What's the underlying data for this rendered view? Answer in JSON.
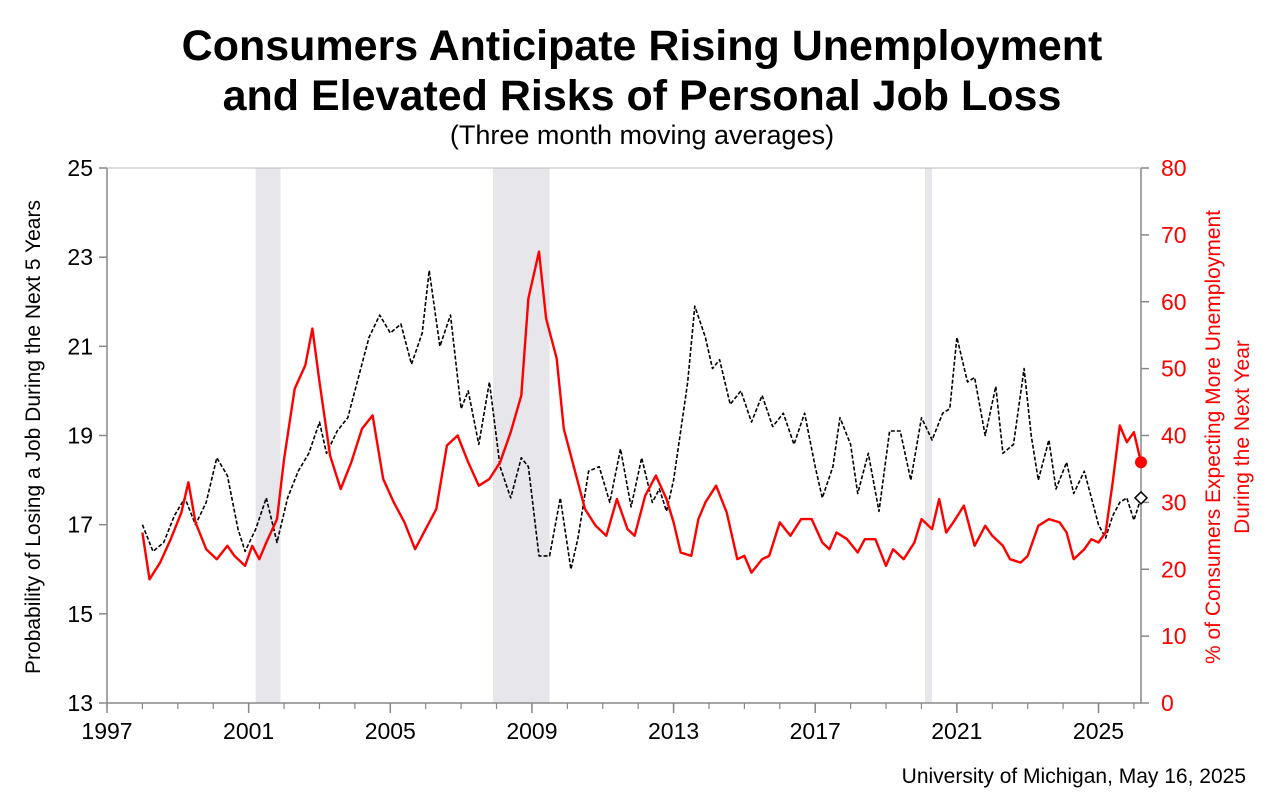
{
  "title_line1": "Consumers Anticipate Rising Unemployment",
  "title_line2": "and Elevated Risks of Personal Job Loss",
  "subtitle": "(Three month moving averages)",
  "source": "University of Michigan, May 16, 2025",
  "colors": {
    "left_series": "#000000",
    "right_series": "#ff0000",
    "right_axis": "#ff0000",
    "recession": "#e6e6eb"
  },
  "chart_data": {
    "type": "line",
    "xlim": [
      1997,
      2026.2
    ],
    "x_ticks": [
      "1997",
      "2001",
      "2005",
      "2009",
      "2013",
      "2017",
      "2021",
      "2025"
    ],
    "y_left": {
      "label": "Probability of Losing a Job During the Next 5 Years",
      "ylim": [
        13,
        25
      ],
      "ticks": [
        "13",
        "15",
        "17",
        "19",
        "21",
        "23",
        "25"
      ]
    },
    "y_right": {
      "label_line1": "% of Consumers Expecting More Unemployment",
      "label_line2": "During the Next Year",
      "ylim": [
        0,
        80
      ],
      "ticks": [
        "0",
        "10",
        "20",
        "30",
        "40",
        "50",
        "60",
        "70",
        "80"
      ]
    },
    "recessions": [
      [
        2001.2,
        2001.9
      ],
      [
        2007.9,
        2009.5
      ],
      [
        2020.1,
        2020.3
      ]
    ],
    "grid": false,
    "legend": "none",
    "series": [
      {
        "axis": "left",
        "style": "dashed",
        "points": [
          [
            1998.0,
            17.0
          ],
          [
            1998.3,
            16.4
          ],
          [
            1998.6,
            16.6
          ],
          [
            1998.9,
            17.2
          ],
          [
            1999.2,
            17.6
          ],
          [
            1999.5,
            17.0
          ],
          [
            1999.8,
            17.5
          ],
          [
            2000.1,
            18.5
          ],
          [
            2000.4,
            18.1
          ],
          [
            2000.7,
            16.9
          ],
          [
            2000.9,
            16.4
          ],
          [
            2001.2,
            16.9
          ],
          [
            2001.5,
            17.6
          ],
          [
            2001.8,
            16.6
          ],
          [
            2002.1,
            17.6
          ],
          [
            2002.4,
            18.2
          ],
          [
            2002.7,
            18.6
          ],
          [
            2003.0,
            19.3
          ],
          [
            2003.2,
            18.6
          ],
          [
            2003.5,
            19.1
          ],
          [
            2003.8,
            19.4
          ],
          [
            2004.1,
            20.3
          ],
          [
            2004.4,
            21.2
          ],
          [
            2004.7,
            21.7
          ],
          [
            2005.0,
            21.3
          ],
          [
            2005.3,
            21.5
          ],
          [
            2005.6,
            20.6
          ],
          [
            2005.9,
            21.3
          ],
          [
            2006.1,
            22.7
          ],
          [
            2006.4,
            21.0
          ],
          [
            2006.7,
            21.7
          ],
          [
            2007.0,
            19.6
          ],
          [
            2007.2,
            20.0
          ],
          [
            2007.5,
            18.8
          ],
          [
            2007.8,
            20.2
          ],
          [
            2008.1,
            18.3
          ],
          [
            2008.4,
            17.6
          ],
          [
            2008.7,
            18.5
          ],
          [
            2008.9,
            18.3
          ],
          [
            2009.2,
            16.3
          ],
          [
            2009.5,
            16.3
          ],
          [
            2009.8,
            17.6
          ],
          [
            2010.1,
            16.0
          ],
          [
            2010.3,
            16.7
          ],
          [
            2010.6,
            18.2
          ],
          [
            2010.9,
            18.3
          ],
          [
            2011.2,
            17.5
          ],
          [
            2011.5,
            18.7
          ],
          [
            2011.8,
            17.4
          ],
          [
            2012.1,
            18.5
          ],
          [
            2012.4,
            17.5
          ],
          [
            2012.6,
            17.8
          ],
          [
            2012.8,
            17.3
          ],
          [
            2013.0,
            18.0
          ],
          [
            2013.2,
            19.1
          ],
          [
            2013.4,
            20.2
          ],
          [
            2013.6,
            21.9
          ],
          [
            2013.9,
            21.2
          ],
          [
            2014.1,
            20.5
          ],
          [
            2014.3,
            20.7
          ],
          [
            2014.6,
            19.7
          ],
          [
            2014.9,
            20.0
          ],
          [
            2015.2,
            19.3
          ],
          [
            2015.5,
            19.9
          ],
          [
            2015.8,
            19.2
          ],
          [
            2016.1,
            19.5
          ],
          [
            2016.4,
            18.8
          ],
          [
            2016.7,
            19.5
          ],
          [
            2017.0,
            18.3
          ],
          [
            2017.2,
            17.6
          ],
          [
            2017.5,
            18.3
          ],
          [
            2017.7,
            19.4
          ],
          [
            2018.0,
            18.8
          ],
          [
            2018.2,
            17.7
          ],
          [
            2018.5,
            18.6
          ],
          [
            2018.8,
            17.3
          ],
          [
            2019.1,
            19.1
          ],
          [
            2019.4,
            19.1
          ],
          [
            2019.7,
            18.0
          ],
          [
            2020.0,
            19.4
          ],
          [
            2020.3,
            18.9
          ],
          [
            2020.6,
            19.5
          ],
          [
            2020.8,
            19.6
          ],
          [
            2021.0,
            21.2
          ],
          [
            2021.3,
            20.2
          ],
          [
            2021.5,
            20.3
          ],
          [
            2021.8,
            19.0
          ],
          [
            2022.1,
            20.1
          ],
          [
            2022.3,
            18.6
          ],
          [
            2022.6,
            18.8
          ],
          [
            2022.9,
            20.5
          ],
          [
            2023.1,
            19.0
          ],
          [
            2023.3,
            18.0
          ],
          [
            2023.6,
            18.9
          ],
          [
            2023.8,
            17.8
          ],
          [
            2024.1,
            18.4
          ],
          [
            2024.3,
            17.7
          ],
          [
            2024.6,
            18.2
          ],
          [
            2024.8,
            17.6
          ],
          [
            2025.0,
            17.0
          ],
          [
            2025.2,
            16.7
          ],
          [
            2025.4,
            17.2
          ],
          [
            2025.6,
            17.5
          ],
          [
            2025.8,
            17.6
          ],
          [
            2026.0,
            17.1
          ],
          [
            2026.2,
            17.6
          ]
        ]
      },
      {
        "axis": "right",
        "style": "solid",
        "points": [
          [
            1998.0,
            25.5
          ],
          [
            1998.2,
            18.5
          ],
          [
            1998.5,
            21.0
          ],
          [
            1998.8,
            24.5
          ],
          [
            1999.1,
            28.5
          ],
          [
            1999.3,
            33.0
          ],
          [
            1999.5,
            27.0
          ],
          [
            1999.8,
            23.0
          ],
          [
            2000.1,
            21.5
          ],
          [
            2000.4,
            23.5
          ],
          [
            2000.6,
            22.0
          ],
          [
            2000.9,
            20.5
          ],
          [
            2001.1,
            23.5
          ],
          [
            2001.3,
            21.5
          ],
          [
            2001.5,
            24.0
          ],
          [
            2001.8,
            27.5
          ],
          [
            2002.0,
            36.5
          ],
          [
            2002.3,
            47.0
          ],
          [
            2002.6,
            50.5
          ],
          [
            2002.8,
            56.0
          ],
          [
            2003.0,
            48.0
          ],
          [
            2003.3,
            37.0
          ],
          [
            2003.6,
            32.0
          ],
          [
            2003.9,
            36.0
          ],
          [
            2004.2,
            41.0
          ],
          [
            2004.5,
            43.0
          ],
          [
            2004.8,
            33.5
          ],
          [
            2005.1,
            30.0
          ],
          [
            2005.4,
            27.0
          ],
          [
            2005.7,
            23.0
          ],
          [
            2006.0,
            26.0
          ],
          [
            2006.3,
            29.0
          ],
          [
            2006.6,
            38.5
          ],
          [
            2006.9,
            40.0
          ],
          [
            2007.2,
            36.0
          ],
          [
            2007.5,
            32.5
          ],
          [
            2007.8,
            33.5
          ],
          [
            2008.1,
            36.0
          ],
          [
            2008.4,
            40.5
          ],
          [
            2008.7,
            46.0
          ],
          [
            2008.9,
            60.5
          ],
          [
            2009.2,
            67.5
          ],
          [
            2009.4,
            57.5
          ],
          [
            2009.7,
            51.5
          ],
          [
            2009.9,
            41.0
          ],
          [
            2010.2,
            35.0
          ],
          [
            2010.5,
            29.0
          ],
          [
            2010.8,
            26.5
          ],
          [
            2011.1,
            25.0
          ],
          [
            2011.4,
            30.5
          ],
          [
            2011.7,
            26.0
          ],
          [
            2011.9,
            25.0
          ],
          [
            2012.2,
            31.0
          ],
          [
            2012.5,
            34.0
          ],
          [
            2012.8,
            30.5
          ],
          [
            2013.0,
            27.0
          ],
          [
            2013.2,
            22.5
          ],
          [
            2013.5,
            22.0
          ],
          [
            2013.7,
            27.5
          ],
          [
            2013.9,
            30.0
          ],
          [
            2014.2,
            32.5
          ],
          [
            2014.5,
            28.5
          ],
          [
            2014.8,
            21.5
          ],
          [
            2015.0,
            22.0
          ],
          [
            2015.2,
            19.5
          ],
          [
            2015.5,
            21.5
          ],
          [
            2015.7,
            22.0
          ],
          [
            2016.0,
            27.0
          ],
          [
            2016.3,
            25.0
          ],
          [
            2016.6,
            27.5
          ],
          [
            2016.9,
            27.5
          ],
          [
            2017.2,
            24.0
          ],
          [
            2017.4,
            23.0
          ],
          [
            2017.6,
            25.5
          ],
          [
            2017.9,
            24.5
          ],
          [
            2018.2,
            22.5
          ],
          [
            2018.4,
            24.5
          ],
          [
            2018.7,
            24.5
          ],
          [
            2019.0,
            20.5
          ],
          [
            2019.2,
            23.0
          ],
          [
            2019.5,
            21.5
          ],
          [
            2019.8,
            24.0
          ],
          [
            2020.0,
            27.5
          ],
          [
            2020.3,
            26.0
          ],
          [
            2020.5,
            30.5
          ],
          [
            2020.7,
            25.5
          ],
          [
            2020.9,
            27.0
          ],
          [
            2021.2,
            29.5
          ],
          [
            2021.5,
            23.5
          ],
          [
            2021.8,
            26.5
          ],
          [
            2022.0,
            25.0
          ],
          [
            2022.3,
            23.5
          ],
          [
            2022.5,
            21.5
          ],
          [
            2022.8,
            21.0
          ],
          [
            2023.0,
            22.0
          ],
          [
            2023.3,
            26.5
          ],
          [
            2023.6,
            27.5
          ],
          [
            2023.9,
            27.0
          ],
          [
            2024.1,
            25.5
          ],
          [
            2024.3,
            21.5
          ],
          [
            2024.6,
            23.0
          ],
          [
            2024.8,
            24.5
          ],
          [
            2025.0,
            24.0
          ],
          [
            2025.2,
            25.5
          ],
          [
            2025.4,
            33.0
          ],
          [
            2025.6,
            41.5
          ],
          [
            2025.8,
            39.0
          ],
          [
            2026.0,
            40.5
          ],
          [
            2026.2,
            36.0
          ]
        ]
      }
    ]
  }
}
